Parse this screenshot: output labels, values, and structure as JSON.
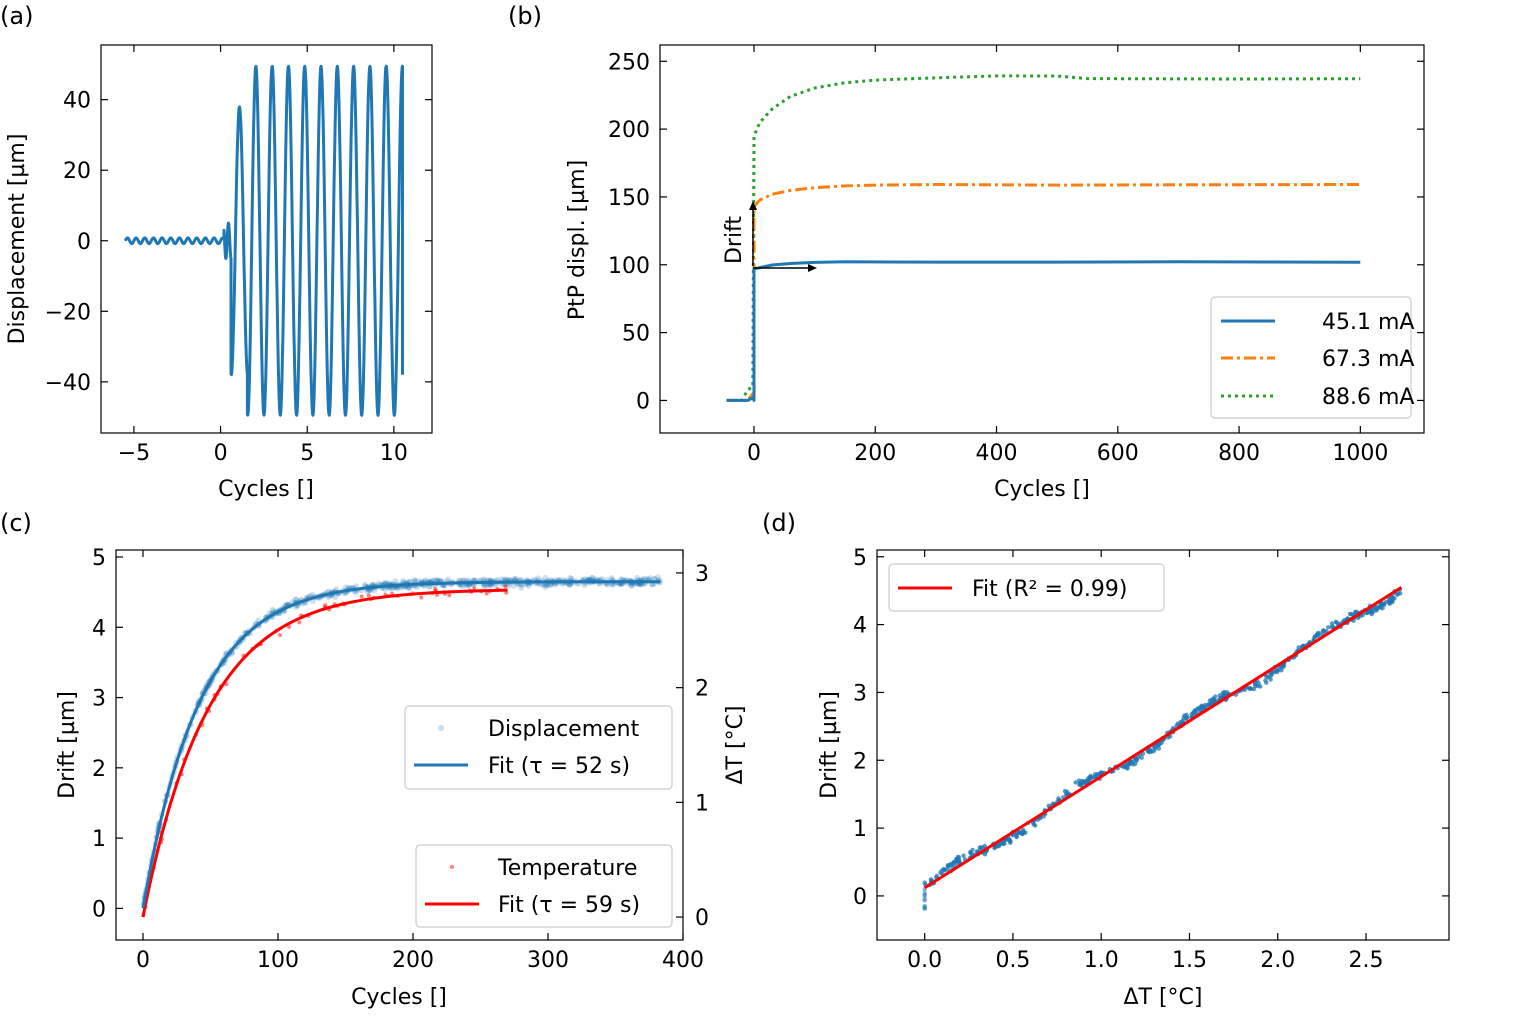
{
  "colors": {
    "blue": "#1f77b4",
    "orange": "#ff7f0e",
    "green": "#2ca02c",
    "red": "#ff0000",
    "axis": "#000000",
    "legend_border": "#cccccc"
  },
  "chart_data": [
    {
      "id": "a",
      "panel_label": "(a)",
      "type": "line",
      "xlabel": "Cycles []",
      "ylabel": "Displacement [µm]",
      "xlim": [
        -6.9,
        12.2
      ],
      "ylim": [
        -54.5,
        55.5
      ],
      "xticks": [
        -5,
        0,
        5,
        10
      ],
      "xtick_labels": [
        "−5",
        "0",
        "5",
        "10"
      ],
      "yticks": [
        -40,
        -20,
        0,
        20,
        40
      ],
      "ytick_labels": [
        "−40",
        "−20",
        "0",
        "20",
        "40"
      ],
      "series": [
        {
          "name": "Displacement",
          "color": "#1f77b4",
          "segments": [
            {
              "x_start": -5.5,
              "x_end": 0.2,
              "period": 0.5,
              "amplitude": 0.8
            },
            {
              "x_start": 0.2,
              "x_end": 0.6,
              "period": 0.3,
              "amplitude": 5
            },
            {
              "x_start": 0.6,
              "x_end": 1.55,
              "period": 0.95,
              "amplitude": 38
            },
            {
              "x_start": 1.55,
              "x_end": 10.5,
              "period": 0.94,
              "amplitude": 49.5
            }
          ]
        }
      ]
    },
    {
      "id": "b",
      "panel_label": "(b)",
      "type": "line",
      "xlabel": "Cycles []",
      "ylabel": "PtP displ. [µm]",
      "xlim": [
        -155,
        1105
      ],
      "ylim": [
        -24,
        262
      ],
      "xticks": [
        0,
        200,
        400,
        600,
        800,
        1000
      ],
      "xtick_labels": [
        "0",
        "200",
        "400",
        "600",
        "800",
        "1000"
      ],
      "yticks": [
        0,
        50,
        100,
        150,
        200,
        250
      ],
      "ytick_labels": [
        "0",
        "50",
        "100",
        "150",
        "200",
        "250"
      ],
      "series": [
        {
          "name": "45.1 mA",
          "color": "#1f77b4",
          "style": "solid",
          "x": [
            -45,
            -10,
            -2,
            0,
            0,
            10,
            30,
            60,
            100,
            150,
            300,
            500,
            700,
            1000
          ],
          "y": [
            0,
            0,
            2,
            0,
            97,
            98,
            100,
            101,
            101.5,
            102,
            102,
            102,
            102,
            102
          ]
        },
        {
          "name": "67.3 mA",
          "color": "#ff7f0e",
          "style": "dashdot",
          "x": [
            -45,
            -10,
            -2,
            0,
            0,
            10,
            30,
            60,
            100,
            150,
            200,
            300,
            500,
            700,
            1000
          ],
          "y": [
            0,
            0,
            5,
            0,
            143,
            148,
            152,
            155,
            157,
            158,
            158.5,
            159,
            159,
            159,
            159
          ]
        },
        {
          "name": "88.6 mA",
          "color": "#2ca02c",
          "style": "dotted",
          "x": [
            -45,
            -20,
            -10,
            -2,
            0,
            10,
            30,
            60,
            100,
            150,
            200,
            300,
            400,
            500,
            550,
            600,
            800,
            1000
          ],
          "y": [
            0,
            0,
            8,
            10,
            195,
            205,
            215,
            224,
            230,
            234,
            236,
            238,
            239,
            239,
            237,
            237,
            237,
            237
          ]
        }
      ],
      "annotation": {
        "text": "Drift"
      },
      "legend": {
        "placement": "lower-right",
        "entries": [
          "45.1 mA",
          "67.3 mA",
          "88.6 mA"
        ]
      }
    },
    {
      "id": "c",
      "panel_label": "(c)",
      "type": "scatter+line",
      "xlabel": "Cycles []",
      "ylabel": "Drift [µm]",
      "ylabel_right": "ΔT [°C]",
      "xlim": [
        -20,
        400
      ],
      "ylim": [
        -0.45,
        5.1
      ],
      "ylim_right": [
        -0.2,
        3.2
      ],
      "xticks": [
        0,
        100,
        200,
        300,
        400
      ],
      "xtick_labels": [
        "0",
        "100",
        "200",
        "300",
        "400"
      ],
      "yticks": [
        0,
        1,
        2,
        3,
        4,
        5
      ],
      "ytick_labels": [
        "0",
        "1",
        "2",
        "3",
        "4",
        "5"
      ],
      "yticks_right": [
        0,
        1,
        2,
        3
      ],
      "ytick_labels_right": [
        "0",
        "1",
        "2",
        "3"
      ],
      "displacement_fit": {
        "A": 4.65,
        "tau_cycles": 42,
        "x_end": 383
      },
      "temperature_fit": {
        "A": 2.86,
        "tau_cycles": 48,
        "x_end": 270
      },
      "legend_top": {
        "placement": "center-right",
        "entries": [
          "Displacement",
          "Fit (τ = 52 s)"
        ]
      },
      "legend_bottom": {
        "placement": "lower-right",
        "entries": [
          "Temperature",
          "Fit (τ = 59 s)"
        ]
      }
    },
    {
      "id": "d",
      "panel_label": "(d)",
      "type": "scatter+line",
      "xlabel": "ΔT [°C]",
      "ylabel": "Drift [µm]",
      "xlim": [
        -0.27,
        2.97
      ],
      "ylim": [
        -0.65,
        5.1
      ],
      "xticks": [
        0.0,
        0.5,
        1.0,
        1.5,
        2.0,
        2.5
      ],
      "xtick_labels": [
        "0.0",
        "0.5",
        "1.0",
        "1.5",
        "2.0",
        "2.5"
      ],
      "yticks": [
        0,
        1,
        2,
        3,
        4,
        5
      ],
      "ytick_labels": [
        "0",
        "1",
        "2",
        "3",
        "4",
        "5"
      ],
      "fit": {
        "slope": 1.64,
        "intercept": 0.12,
        "x_range": [
          0,
          2.7
        ]
      },
      "legend": {
        "placement": "top-left",
        "entries": [
          "Fit (R² = 0.99)"
        ]
      }
    }
  ]
}
